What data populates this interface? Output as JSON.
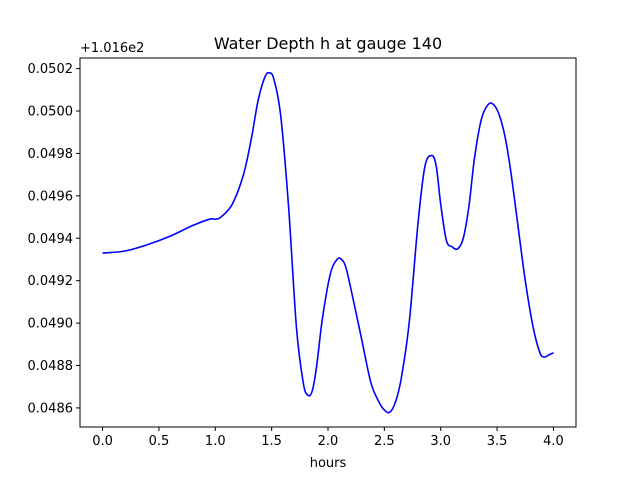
{
  "chart_data": {
    "type": "line",
    "title": "Water Depth h at gauge 140",
    "xlabel": "hours",
    "ylabel": "",
    "y_offset_label": "+1.016e2",
    "xlim": [
      -0.2,
      4.2
    ],
    "ylim": [
      0.04851,
      0.05025
    ],
    "grid": false,
    "x_ticks": [
      0.0,
      0.5,
      1.0,
      1.5,
      2.0,
      2.5,
      3.0,
      3.5,
      4.0
    ],
    "x_tick_labels": [
      "0.0",
      "0.5",
      "1.0",
      "1.5",
      "2.0",
      "2.5",
      "3.0",
      "3.5",
      "4.0"
    ],
    "y_ticks": [
      0.0486,
      0.0488,
      0.049,
      0.0492,
      0.0494,
      0.0496,
      0.0498,
      0.05,
      0.0502
    ],
    "y_tick_labels": [
      "0.0486",
      "0.0488",
      "0.0490",
      "0.0492",
      "0.0494",
      "0.0496",
      "0.0498",
      "0.0500",
      "0.0502"
    ],
    "series": [
      {
        "color": "#0000ff",
        "x": [
          0.0,
          0.2,
          0.4,
          0.6,
          0.8,
          0.95,
          1.0,
          1.05,
          1.15,
          1.25,
          1.32,
          1.38,
          1.44,
          1.48,
          1.52,
          1.58,
          1.65,
          1.72,
          1.78,
          1.82,
          1.86,
          1.9,
          1.95,
          2.02,
          2.08,
          2.12,
          2.16,
          2.22,
          2.3,
          2.38,
          2.45,
          2.5,
          2.55,
          2.6,
          2.65,
          2.72,
          2.8,
          2.86,
          2.92,
          2.96,
          3.0,
          3.05,
          3.1,
          3.15,
          3.2,
          3.25,
          3.3,
          3.36,
          3.42,
          3.47,
          3.52,
          3.57,
          3.62,
          3.68,
          3.75,
          3.82,
          3.88,
          3.92,
          3.96,
          4.0
        ],
        "y": [
          0.04933,
          0.04934,
          0.04937,
          0.04941,
          0.04946,
          0.04949,
          0.04949,
          0.0495,
          0.04956,
          0.0497,
          0.04987,
          0.05005,
          0.05016,
          0.05018,
          0.05015,
          0.04998,
          0.04955,
          0.04898,
          0.04872,
          0.04866,
          0.04868,
          0.0488,
          0.04902,
          0.04923,
          0.0493,
          0.0493,
          0.04926,
          0.04912,
          0.04892,
          0.04872,
          0.04863,
          0.04859,
          0.04858,
          0.04863,
          0.04874,
          0.049,
          0.04948,
          0.04974,
          0.04979,
          0.04974,
          0.04956,
          0.04939,
          0.04936,
          0.04935,
          0.0494,
          0.04955,
          0.04978,
          0.04996,
          0.05003,
          0.05003,
          0.04998,
          0.04988,
          0.04972,
          0.04948,
          0.0492,
          0.04898,
          0.04886,
          0.04884,
          0.04885,
          0.04886
        ]
      }
    ]
  }
}
